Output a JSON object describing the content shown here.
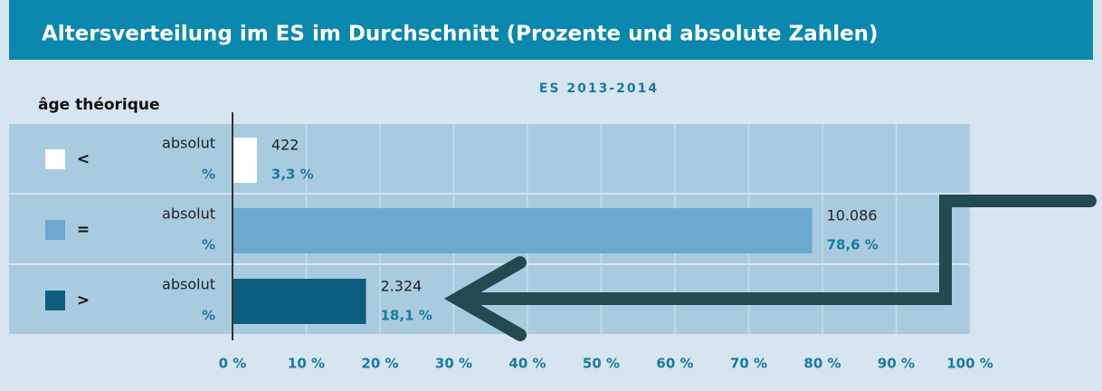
{
  "chart_data": {
    "type": "bar",
    "title": "Altersverteilung im ES im Durchschnitt (Prozente und absolute Zahlen)",
    "subtitle": "ES  2013-2014",
    "axis_header": "âge théorique",
    "row_labels": [
      "absolut",
      "%"
    ],
    "categories": [
      "<",
      "=",
      ">"
    ],
    "colors": [
      "#ffffff",
      "#6aa8cc",
      "#0b5e7e"
    ],
    "values": [
      3.3,
      78.6,
      18.1
    ],
    "value_labels": [
      "3,3 %",
      "78,6 %",
      "18,1 %"
    ],
    "absolute": [
      422,
      10086,
      2324
    ],
    "absolute_labels": [
      "422",
      "10.086",
      "2.324"
    ],
    "xlim": [
      0,
      100
    ],
    "xticks": [
      {
        "value": 0,
        "label": "0 %"
      },
      {
        "value": 10,
        "label": "10 %"
      },
      {
        "value": 20,
        "label": "20 %"
      },
      {
        "value": 30,
        "label": "30 %"
      },
      {
        "value": 40,
        "label": "40 %"
      },
      {
        "value": 50,
        "label": "50 %"
      },
      {
        "value": 60,
        "label": "60 %"
      },
      {
        "value": 70,
        "label": "70 %"
      },
      {
        "value": 80,
        "label": "80 %"
      },
      {
        "value": 90,
        "label": "90 %"
      },
      {
        "value": 100,
        "label": "100 %"
      }
    ],
    "grid": true
  }
}
